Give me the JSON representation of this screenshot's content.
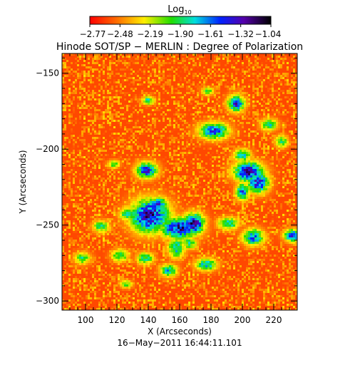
{
  "chart_data": {
    "type": "heatmap",
    "title": "Hinode SOT/SP − MERLIN : Degree of Polarization",
    "colorbar": {
      "label_base": "Log",
      "label_sub": "10",
      "ticks": [
        "−2.77",
        "−2.48",
        "−2.19",
        "−1.90",
        "−1.61",
        "−1.32",
        "−1.04"
      ],
      "range": [
        -2.77,
        -1.04
      ],
      "colormap": "rainbow (red → yellow → green → cyan → blue → purple → black)"
    },
    "xlabel": "X (Arcseconds)",
    "ylabel": "Y (Arcseconds)",
    "xlim": [
      85,
      235
    ],
    "ylim": [
      -306,
      -137
    ],
    "x_ticks": [
      100,
      120,
      140,
      160,
      180,
      200,
      220
    ],
    "y_ticks": [
      "−150",
      "−200",
      "−250",
      "−300"
    ],
    "y_tick_values": [
      -150,
      -200,
      -250,
      -300
    ],
    "timestamp": "16−May−2011 16:44:11.101",
    "background_level": -2.6,
    "features": [
      {
        "x": 141,
        "y": -244,
        "rx": 9,
        "ry": 8,
        "level": -1.3
      },
      {
        "x": 160,
        "y": -252,
        "rx": 9,
        "ry": 5,
        "level": -1.35
      },
      {
        "x": 169,
        "y": -249,
        "rx": 5,
        "ry": 5,
        "level": -1.3
      },
      {
        "x": 146,
        "y": -237,
        "rx": 5,
        "ry": 4,
        "level": -1.55
      },
      {
        "x": 127,
        "y": -243,
        "rx": 4,
        "ry": 3,
        "level": -1.8
      },
      {
        "x": 139,
        "y": -214,
        "rx": 5,
        "ry": 4,
        "level": -1.5
      },
      {
        "x": 204,
        "y": -215,
        "rx": 7,
        "ry": 5,
        "level": -1.35
      },
      {
        "x": 210,
        "y": -222,
        "rx": 5,
        "ry": 5,
        "level": -1.4
      },
      {
        "x": 200,
        "y": -228,
        "rx": 3,
        "ry": 4,
        "level": -1.5
      },
      {
        "x": 182,
        "y": -188,
        "rx": 7,
        "ry": 4,
        "level": -1.55
      },
      {
        "x": 196,
        "y": -170,
        "rx": 4,
        "ry": 4,
        "level": -1.5
      },
      {
        "x": 200,
        "y": -204,
        "rx": 4,
        "ry": 3,
        "level": -1.75
      },
      {
        "x": 217,
        "y": -184,
        "rx": 4,
        "ry": 3,
        "level": -1.85
      },
      {
        "x": 191,
        "y": -249,
        "rx": 5,
        "ry": 3,
        "level": -1.8
      },
      {
        "x": 207,
        "y": -258,
        "rx": 5,
        "ry": 4,
        "level": -1.6
      },
      {
        "x": 232,
        "y": -257,
        "rx": 4,
        "ry": 3,
        "level": -1.5
      },
      {
        "x": 177,
        "y": -276,
        "rx": 5,
        "ry": 3,
        "level": -1.75
      },
      {
        "x": 166,
        "y": -262,
        "rx": 4,
        "ry": 3,
        "level": -1.9
      },
      {
        "x": 158,
        "y": -265,
        "rx": 4,
        "ry": 5,
        "level": -1.75
      },
      {
        "x": 153,
        "y": -280,
        "rx": 4,
        "ry": 3,
        "level": -1.75
      },
      {
        "x": 138,
        "y": -272,
        "rx": 4,
        "ry": 3,
        "level": -1.85
      },
      {
        "x": 122,
        "y": -270,
        "rx": 4,
        "ry": 3,
        "level": -1.85
      },
      {
        "x": 110,
        "y": -251,
        "rx": 4,
        "ry": 3,
        "level": -1.9
      },
      {
        "x": 98,
        "y": -272,
        "rx": 4,
        "ry": 3,
        "level": -1.95
      },
      {
        "x": 126,
        "y": -289,
        "rx": 3,
        "ry": 2,
        "level": -2.0
      },
      {
        "x": 140,
        "y": -168,
        "rx": 3,
        "ry": 2,
        "level": -1.85
      },
      {
        "x": 178,
        "y": -162,
        "rx": 3,
        "ry": 2,
        "level": -2.0
      },
      {
        "x": 118,
        "y": -210,
        "rx": 3,
        "ry": 2,
        "level": -2.0
      },
      {
        "x": 225,
        "y": -195,
        "rx": 3,
        "ry": 3,
        "level": -1.9
      }
    ]
  }
}
